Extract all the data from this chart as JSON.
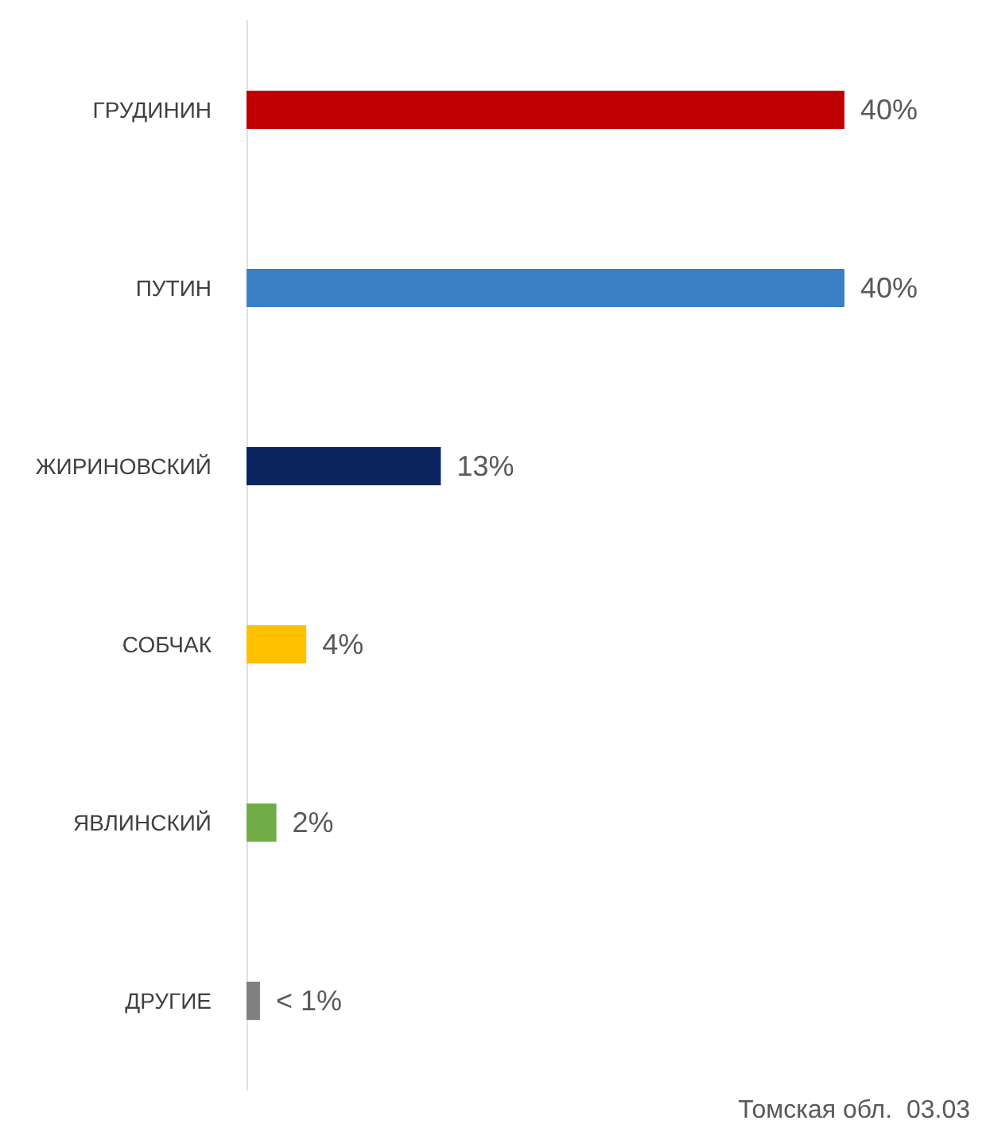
{
  "chart_data": {
    "type": "bar",
    "orientation": "horizontal",
    "categories": [
      "ГРУДИНИН",
      "ПУТИН",
      "ЖИРИНОВСКИЙ",
      "СОБЧАК",
      "ЯВЛИНСКИЙ",
      "ДРУГИЕ"
    ],
    "values": [
      40,
      40,
      13,
      4,
      2,
      0.9
    ],
    "colors": [
      "#c00000",
      "#3a80c4",
      "#0b2560",
      "#ffc000",
      "#70ad47",
      "#808080"
    ],
    "value_labels": [
      "40%",
      "40%",
      "13%",
      "4%",
      "2%",
      "< 1%"
    ],
    "annotations": [
      "Томская обл.  03.03"
    ]
  }
}
